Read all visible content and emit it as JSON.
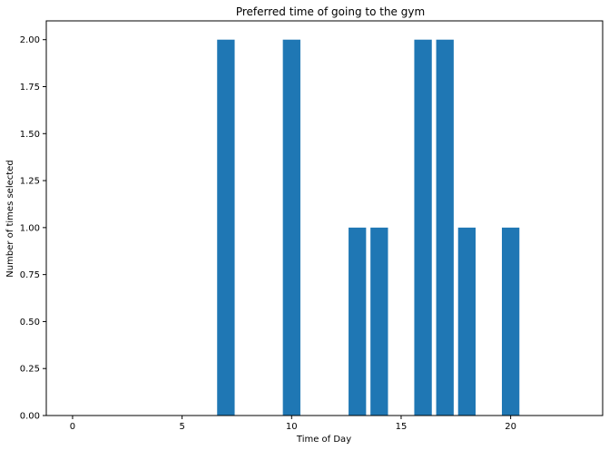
{
  "chart_data": {
    "type": "bar",
    "title": "Preferred time of going to the gym",
    "xlabel": "Time of Day",
    "ylabel": "Number of times selected",
    "x": [
      7,
      10,
      13,
      14,
      16,
      17,
      18,
      20
    ],
    "values": [
      2,
      2,
      1,
      1,
      2,
      2,
      1,
      1
    ],
    "bar_width": 0.8,
    "xlim": [
      -1.2,
      24.2
    ],
    "ylim": [
      0,
      2.1
    ],
    "xticks": [
      0,
      5,
      10,
      15,
      20
    ],
    "xtick_labels": [
      "0",
      "5",
      "10",
      "15",
      "20"
    ],
    "yticks": [
      0,
      0.25,
      0.5,
      0.75,
      1.0,
      1.25,
      1.5,
      1.75,
      2.0
    ],
    "ytick_labels": [
      "0.00",
      "0.25",
      "0.50",
      "0.75",
      "1.00",
      "1.25",
      "1.50",
      "1.75",
      "2.00"
    ],
    "bar_color": "#1f77b4",
    "grid": false,
    "legend": false
  }
}
